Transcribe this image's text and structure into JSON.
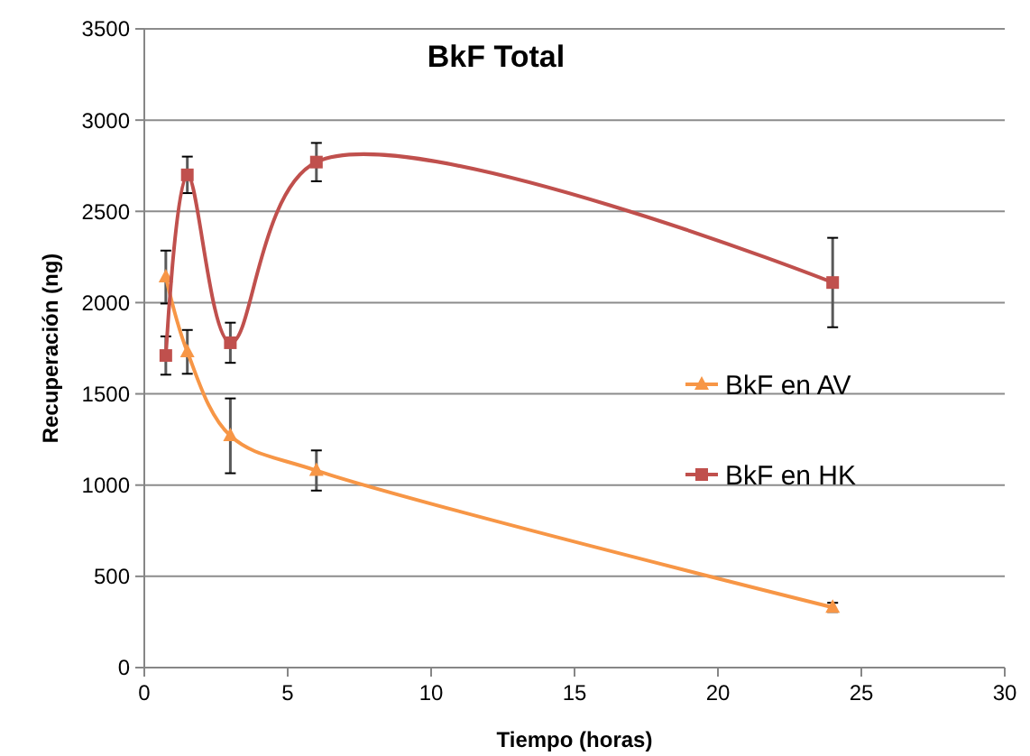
{
  "chart_data": {
    "type": "line",
    "title": "BkF Total",
    "xlabel": "Tiempo (horas)",
    "ylabel": "Recuperación (ng)",
    "x": [
      0.75,
      1.5,
      3,
      6,
      24
    ],
    "xlim": [
      0,
      30
    ],
    "xticks": [
      0,
      5,
      10,
      15,
      20,
      25,
      30
    ],
    "ylim": [
      0,
      3500
    ],
    "yticks": [
      0,
      500,
      1000,
      1500,
      2000,
      2500,
      3000,
      3500
    ],
    "grid": "y",
    "legend": "right",
    "series": [
      {
        "name": "BkF en AV",
        "color": "#f79646",
        "marker": "triangle",
        "values": [
          2140,
          1730,
          1270,
          1080,
          330
        ],
        "errors": [
          145,
          120,
          205,
          110,
          25
        ]
      },
      {
        "name": "BkF en HK",
        "color": "#c0504d",
        "marker": "square",
        "values": [
          1710,
          2700,
          1780,
          2770,
          2110
        ],
        "errors": [
          105,
          100,
          110,
          105,
          245
        ]
      }
    ]
  }
}
